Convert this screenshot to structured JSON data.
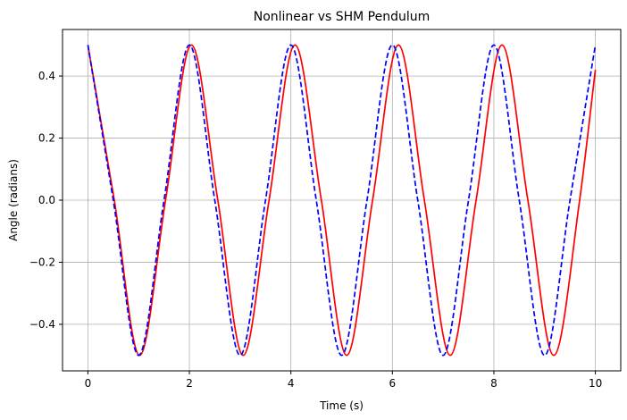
{
  "chart_data": {
    "type": "line",
    "title": "Nonlinear vs SHM Pendulum",
    "xlabel": "Time (s)",
    "ylabel": "Angle (radians)",
    "xlim": [
      -0.5,
      10.5
    ],
    "ylim": [
      -0.55,
      0.55
    ],
    "xticks": [
      0,
      2,
      4,
      6,
      8,
      10
    ],
    "xtick_labels": [
      "0",
      "2",
      "4",
      "6",
      "8",
      "10"
    ],
    "yticks": [
      -0.4,
      -0.2,
      0.0,
      0.2,
      0.4
    ],
    "ytick_labels": [
      "−0.4",
      "−0.2",
      "0.0",
      "0.2",
      "0.4"
    ],
    "grid": true,
    "legend": "none",
    "series": [
      {
        "color": "#ff0000",
        "line_style": "solid",
        "x": [
          0,
          0.52,
          1.02,
          1.53,
          2.04,
          2.56,
          3.06,
          3.57,
          4.08,
          4.6,
          5.1,
          5.61,
          6.12,
          6.63,
          7.14,
          7.65,
          8.16,
          8.67,
          9.18,
          9.69,
          10.0
        ],
        "y": [
          0.5,
          0.0,
          -0.5,
          0.0,
          0.5,
          0.0,
          -0.5,
          0.0,
          0.5,
          0.0,
          -0.5,
          0.0,
          0.5,
          0.0,
          -0.5,
          0.0,
          0.5,
          0.0,
          -0.5,
          0.0,
          0.42
        ]
      },
      {
        "color": "#0000ff",
        "line_style": "dashed",
        "x": [
          0,
          0.5,
          1.0,
          1.5,
          2.0,
          2.5,
          3.0,
          3.5,
          4.0,
          4.5,
          5.0,
          5.5,
          6.0,
          6.5,
          7.0,
          7.5,
          8.0,
          8.5,
          9.0,
          9.5,
          10.0
        ],
        "y": [
          0.5,
          0.0,
          -0.5,
          0.0,
          0.5,
          0.0,
          -0.5,
          0.0,
          0.5,
          0.0,
          -0.5,
          0.0,
          0.5,
          0.0,
          -0.5,
          0.0,
          0.5,
          0.0,
          -0.5,
          0.0,
          0.5
        ]
      }
    ]
  }
}
